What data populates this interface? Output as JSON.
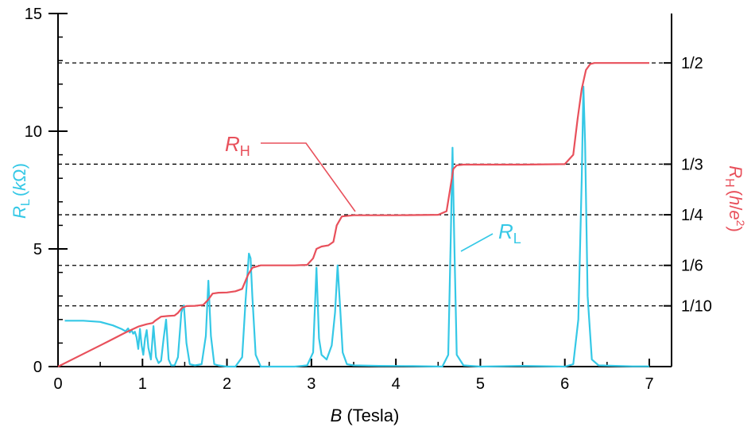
{
  "chart_data": {
    "type": "line",
    "xlabel": {
      "var": "B",
      "unit": "(Tesla)"
    },
    "ylabel_left": {
      "var": "R",
      "sub": "L",
      "unit_open": "(",
      "unit_k": "k",
      "unit_omega": "Ω",
      "unit_close": ")"
    },
    "ylabel_right": {
      "var": "R",
      "sub": "H",
      "unit_open": "(",
      "unit_h": "h",
      "unit_slash": "/",
      "unit_e": "e",
      "unit_pow": "2",
      "unit_close": ")"
    },
    "xlim": [
      0,
      7.0
    ],
    "ylim": [
      0,
      15
    ],
    "xticks": [
      "0",
      "1",
      "2",
      "3",
      "4",
      "5",
      "6",
      "7"
    ],
    "yticks": [
      "0",
      "5",
      "10",
      "15"
    ],
    "right_axis_labels": [
      {
        "text": "1/2",
        "value_kohm": 12.9
      },
      {
        "text": "1/3",
        "value_kohm": 8.6
      },
      {
        "text": "1/4",
        "value_kohm": 6.45
      },
      {
        "text": "1/6",
        "value_kohm": 4.3
      },
      {
        "text": "1/10",
        "value_kohm": 2.58
      }
    ],
    "colors": {
      "RL": "#35c8e6",
      "RH": "#e8505b",
      "axis": "#000000"
    },
    "series": [
      {
        "name": "R_H",
        "label": {
          "var": "R",
          "sub": "H"
        },
        "x": [
          0,
          0.2,
          0.4,
          0.6,
          0.8,
          0.95,
          1.05,
          1.12,
          1.15,
          1.22,
          1.3,
          1.38,
          1.42,
          1.47,
          1.52,
          1.62,
          1.72,
          1.78,
          1.83,
          1.9,
          2.0,
          2.1,
          2.18,
          2.25,
          2.3,
          2.4,
          2.6,
          2.8,
          2.95,
          3.02,
          3.06,
          3.12,
          3.2,
          3.26,
          3.3,
          3.36,
          3.5,
          4.0,
          4.5,
          4.6,
          4.64,
          4.68,
          4.72,
          4.8,
          5.0,
          5.5,
          6.0,
          6.1,
          6.15,
          6.2,
          6.25,
          6.3,
          6.35,
          6.4,
          6.6,
          6.8,
          7.0
        ],
        "y": [
          0,
          0.36,
          0.72,
          1.08,
          1.45,
          1.7,
          1.8,
          1.85,
          1.95,
          2.12,
          2.15,
          2.17,
          2.28,
          2.5,
          2.57,
          2.58,
          2.62,
          2.85,
          3.1,
          3.14,
          3.15,
          3.2,
          3.3,
          3.9,
          4.2,
          4.3,
          4.3,
          4.3,
          4.32,
          4.6,
          5.0,
          5.1,
          5.15,
          5.3,
          6.0,
          6.38,
          6.43,
          6.43,
          6.45,
          6.6,
          7.5,
          8.4,
          8.55,
          8.58,
          8.58,
          8.58,
          8.6,
          9.0,
          10.5,
          11.8,
          12.6,
          12.85,
          12.9,
          12.9,
          12.9,
          12.9,
          12.9
        ]
      },
      {
        "name": "R_L",
        "label": {
          "var": "R",
          "sub": "L"
        },
        "x": [
          0.08,
          0.3,
          0.5,
          0.65,
          0.75,
          0.8,
          0.83,
          0.85,
          0.87,
          0.89,
          0.91,
          0.93,
          0.95,
          0.97,
          0.99,
          1.01,
          1.03,
          1.05,
          1.07,
          1.1,
          1.13,
          1.16,
          1.19,
          1.22,
          1.25,
          1.28,
          1.31,
          1.34,
          1.38,
          1.42,
          1.46,
          1.49,
          1.52,
          1.56,
          1.62,
          1.7,
          1.75,
          1.78,
          1.81,
          1.85,
          1.9,
          2.0,
          2.1,
          2.18,
          2.22,
          2.26,
          2.28,
          2.3,
          2.34,
          2.4,
          2.6,
          2.8,
          2.95,
          3.02,
          3.06,
          3.09,
          3.12,
          3.18,
          3.24,
          3.28,
          3.31,
          3.34,
          3.37,
          3.42,
          3.5,
          3.8,
          4.2,
          4.55,
          4.62,
          4.65,
          4.67,
          4.69,
          4.72,
          4.8,
          5.0,
          5.5,
          6.0,
          6.1,
          6.16,
          6.2,
          6.22,
          6.24,
          6.27,
          6.32,
          6.4,
          6.6,
          6.8,
          7.0
        ],
        "y": [
          1.95,
          1.95,
          1.9,
          1.75,
          1.6,
          1.5,
          1.62,
          1.45,
          1.55,
          1.4,
          1.48,
          1.25,
          0.75,
          1.6,
          0.9,
          0.5,
          1.2,
          1.55,
          0.8,
          0.3,
          1.72,
          0.4,
          0.15,
          0.25,
          1.2,
          2.0,
          0.3,
          0.05,
          0.05,
          0.4,
          2.3,
          2.6,
          1.0,
          0.1,
          0.05,
          0.1,
          1.3,
          3.65,
          1.3,
          0.1,
          0.05,
          0.0,
          0.0,
          0.4,
          2.8,
          4.8,
          4.6,
          3.0,
          0.5,
          0.0,
          0.0,
          0.0,
          0.05,
          0.6,
          4.2,
          1.2,
          0.5,
          0.3,
          0.9,
          2.3,
          4.3,
          2.5,
          0.6,
          0.1,
          0.05,
          0.03,
          0.02,
          0.0,
          0.5,
          5.5,
          9.3,
          5.5,
          0.5,
          0.05,
          0.0,
          0.03,
          0.0,
          0.1,
          2.0,
          8.0,
          11.9,
          9.5,
          3.0,
          0.3,
          0.05,
          0.03,
          0.01,
          0.01
        ]
      }
    ]
  }
}
